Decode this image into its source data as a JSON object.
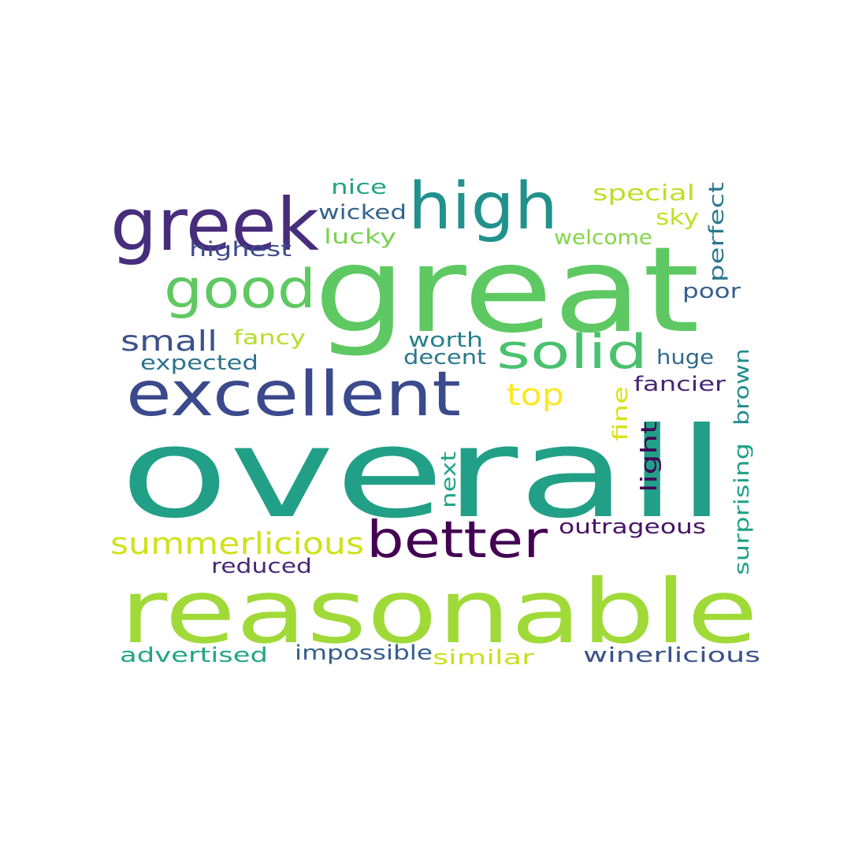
{
  "words": [
    {
      "text": "overall",
      "color": "#21a087"
    },
    {
      "text": "great",
      "color": "#5ec962"
    },
    {
      "text": "reasonable",
      "color": "#a0da39"
    },
    {
      "text": "excellent",
      "color": "#3b4a8c"
    },
    {
      "text": "greek",
      "color": "#472d7b"
    },
    {
      "text": "high",
      "color": "#21918c"
    },
    {
      "text": "good",
      "color": "#5ec962"
    },
    {
      "text": "better",
      "color": "#440154"
    },
    {
      "text": "solid",
      "color": "#4ac16d"
    },
    {
      "text": "summerlicious",
      "color": "#d0e11c"
    },
    {
      "text": "top",
      "color": "#fde725"
    },
    {
      "text": "small",
      "color": "#3b528b"
    },
    {
      "text": "nice",
      "color": "#20a386"
    },
    {
      "text": "wicked",
      "color": "#33638d"
    },
    {
      "text": "lucky",
      "color": "#7ad151"
    },
    {
      "text": "highest",
      "color": "#3e4a89"
    },
    {
      "text": "special",
      "color": "#bddf26"
    },
    {
      "text": "sky",
      "color": "#c2df23"
    },
    {
      "text": "welcome",
      "color": "#86d549"
    },
    {
      "text": "perfect",
      "color": "#2a788e"
    },
    {
      "text": "poor",
      "color": "#355f8d"
    },
    {
      "text": "fancy",
      "color": "#b5de2b"
    },
    {
      "text": "expected",
      "color": "#2c728e"
    },
    {
      "text": "worth",
      "color": "#277f8e"
    },
    {
      "text": "decent",
      "color": "#2a768e"
    },
    {
      "text": "huge",
      "color": "#31688e"
    },
    {
      "text": "fancier",
      "color": "#482576"
    },
    {
      "text": "fine",
      "color": "#d8e219"
    },
    {
      "text": "light",
      "color": "#440154"
    },
    {
      "text": "next",
      "color": "#20a386"
    },
    {
      "text": "brown",
      "color": "#228d8d"
    },
    {
      "text": "surprising",
      "color": "#1fa187"
    },
    {
      "text": "outrageous",
      "color": "#471365"
    },
    {
      "text": "reduced",
      "color": "#482878"
    },
    {
      "text": "advertised",
      "color": "#21a585"
    },
    {
      "text": "impossible",
      "color": "#355e8d"
    },
    {
      "text": "similar",
      "color": "#c8e020"
    },
    {
      "text": "winerlicious",
      "color": "#3b528b"
    }
  ]
}
